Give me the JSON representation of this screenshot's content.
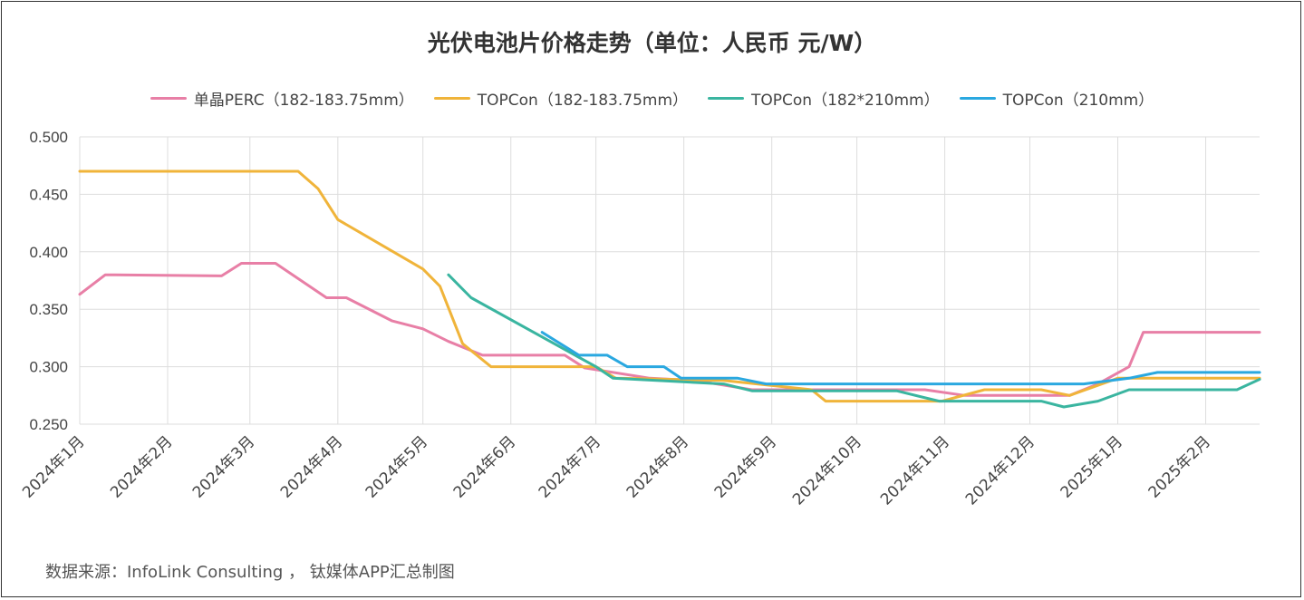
{
  "chart_data": {
    "type": "line",
    "title": "光伏电池片价格走势（单位：人民币 元/W）",
    "source": "数据来源：InfoLink Consulting ， 钛媒体APP汇总制图",
    "ylim": [
      0.25,
      0.5
    ],
    "yticks": [
      "0.500",
      "0.450",
      "0.400",
      "0.350",
      "0.300",
      "0.250"
    ],
    "xticks": [
      "2024年1月",
      "2024年2月",
      "2024年3月",
      "2024年4月",
      "2024年5月",
      "2024年6月",
      "2024年7月",
      "2024年8月",
      "2024年9月",
      "2024年10月",
      "2024年11月",
      "2024年12月",
      "2025年1月",
      "2025年2月"
    ],
    "xrange": [
      "2024-01-01",
      "2025-02-20"
    ],
    "grid": true,
    "legend_position": "top",
    "series": [
      {
        "name": "单晶PERC（182-183.75mm）",
        "color": "#e87fa6",
        "points": [
          [
            "2024-01-01",
            0.363
          ],
          [
            "2024-01-10",
            0.38
          ],
          [
            "2024-02-20",
            0.379
          ],
          [
            "2024-02-27",
            0.39
          ],
          [
            "2024-03-10",
            0.39
          ],
          [
            "2024-03-28",
            0.36
          ],
          [
            "2024-04-04",
            0.36
          ],
          [
            "2024-04-20",
            0.34
          ],
          [
            "2024-05-01",
            0.333
          ],
          [
            "2024-05-10",
            0.322
          ],
          [
            "2024-05-22",
            0.31
          ],
          [
            "2024-06-20",
            0.31
          ],
          [
            "2024-06-27",
            0.299
          ],
          [
            "2024-07-20",
            0.29
          ],
          [
            "2024-08-05",
            0.288
          ],
          [
            "2024-08-25",
            0.28
          ],
          [
            "2024-09-30",
            0.28
          ],
          [
            "2024-10-25",
            0.28
          ],
          [
            "2024-11-08",
            0.275
          ],
          [
            "2024-12-15",
            0.275
          ],
          [
            "2024-12-25",
            0.285
          ],
          [
            "2025-01-05",
            0.3
          ],
          [
            "2025-01-10",
            0.33
          ],
          [
            "2025-02-20",
            0.33
          ]
        ]
      },
      {
        "name": "TOPCon（182-183.75mm）",
        "color": "#f0b43a",
        "points": [
          [
            "2024-01-01",
            0.47
          ],
          [
            "2024-03-18",
            0.47
          ],
          [
            "2024-03-25",
            0.455
          ],
          [
            "2024-04-01",
            0.428
          ],
          [
            "2024-05-01",
            0.385
          ],
          [
            "2024-05-07",
            0.37
          ],
          [
            "2024-05-15",
            0.32
          ],
          [
            "2024-05-25",
            0.3
          ],
          [
            "2024-07-01",
            0.3
          ],
          [
            "2024-07-08",
            0.29
          ],
          [
            "2024-08-15",
            0.288
          ],
          [
            "2024-09-15",
            0.28
          ],
          [
            "2024-09-20",
            0.27
          ],
          [
            "2024-10-31",
            0.27
          ],
          [
            "2024-11-15",
            0.28
          ],
          [
            "2024-12-05",
            0.28
          ],
          [
            "2024-12-15",
            0.275
          ],
          [
            "2025-01-01",
            0.29
          ],
          [
            "2025-02-20",
            0.29
          ]
        ]
      },
      {
        "name": "TOPCon（182*210mm）",
        "color": "#3ab5a0",
        "points": [
          [
            "2024-05-10",
            0.38
          ],
          [
            "2024-05-18",
            0.36
          ],
          [
            "2024-07-01",
            0.3
          ],
          [
            "2024-07-07",
            0.29
          ],
          [
            "2024-08-15",
            0.285
          ],
          [
            "2024-08-25",
            0.279
          ],
          [
            "2024-10-15",
            0.279
          ],
          [
            "2024-10-30",
            0.27
          ],
          [
            "2024-12-05",
            0.27
          ],
          [
            "2024-12-13",
            0.265
          ],
          [
            "2024-12-25",
            0.27
          ],
          [
            "2025-01-05",
            0.28
          ],
          [
            "2025-02-12",
            0.28
          ],
          [
            "2025-02-20",
            0.289
          ]
        ]
      },
      {
        "name": "TOPCon（210mm）",
        "color": "#2aa8e0",
        "points": [
          [
            "2024-06-12",
            0.33
          ],
          [
            "2024-06-25",
            0.31
          ],
          [
            "2024-07-05",
            0.31
          ],
          [
            "2024-07-12",
            0.3
          ],
          [
            "2024-07-25",
            0.3
          ],
          [
            "2024-07-31",
            0.29
          ],
          [
            "2024-08-20",
            0.29
          ],
          [
            "2024-08-30",
            0.285
          ],
          [
            "2024-12-20",
            0.285
          ],
          [
            "2025-01-05",
            0.29
          ],
          [
            "2025-01-15",
            0.295
          ],
          [
            "2025-02-20",
            0.295
          ]
        ]
      }
    ]
  }
}
